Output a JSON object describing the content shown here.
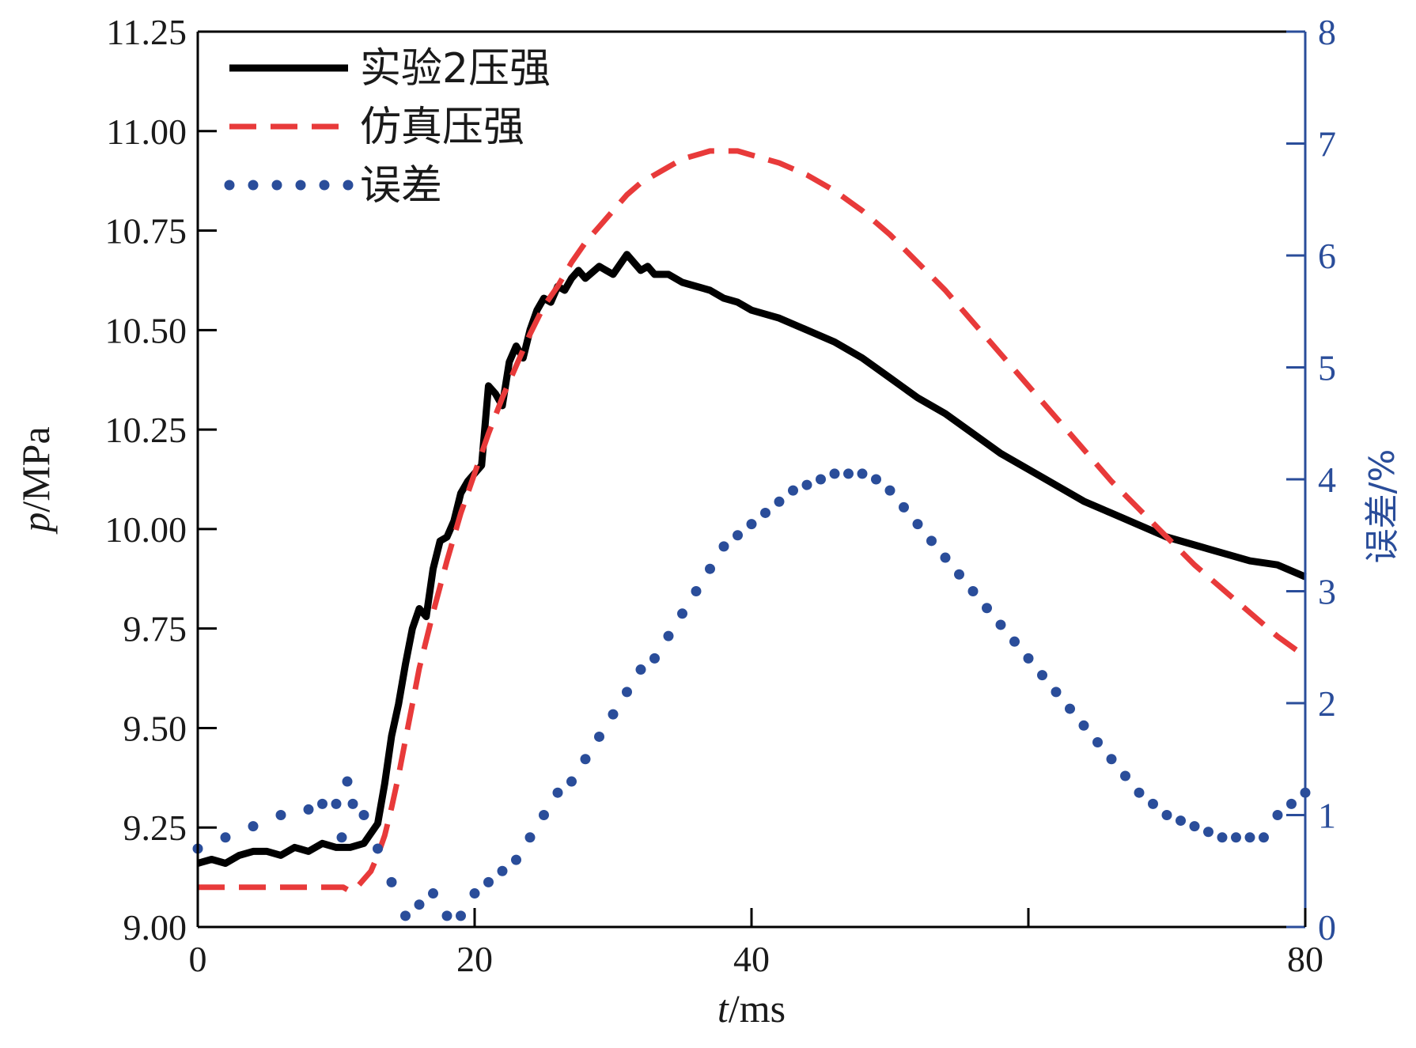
{
  "chart_data": {
    "type": "line",
    "x_axis": {
      "label_var": "t",
      "label_unit": "/ms",
      "range": [
        0,
        80
      ],
      "ticks": [
        0,
        20,
        40,
        60,
        80
      ],
      "tick_labels": [
        "0",
        "20",
        "40",
        "",
        "80"
      ]
    },
    "y_left": {
      "label_var": "p",
      "label_unit": "/MPa",
      "range": [
        9.0,
        11.25
      ],
      "ticks": [
        9.0,
        9.25,
        9.5,
        9.75,
        10.0,
        10.25,
        10.5,
        10.75,
        11.0,
        11.25
      ],
      "tick_labels": [
        "9.00",
        "9.25",
        "9.50",
        "9.75",
        "10.00",
        "10.25",
        "10.50",
        "10.75",
        "11.00",
        "11.25"
      ]
    },
    "y_right": {
      "label": "误差/%",
      "range": [
        0,
        8
      ],
      "ticks": [
        0,
        1,
        2,
        3,
        4,
        5,
        6,
        7,
        8
      ],
      "tick_labels": [
        "0",
        "1",
        "2",
        "3",
        "4",
        "5",
        "6",
        "7",
        "8"
      ]
    },
    "series": [
      {
        "name": "实验2压强",
        "axis": "left",
        "color": "#000000",
        "style": "solid",
        "x": [
          0,
          1,
          2,
          3,
          4,
          5,
          6,
          7,
          8,
          9,
          10,
          11,
          12,
          13,
          13.5,
          14,
          14.5,
          15,
          15.5,
          16,
          16.5,
          17,
          17.5,
          18,
          18.5,
          19,
          19.5,
          20,
          20.5,
          21,
          21.5,
          22,
          22.5,
          23,
          23.5,
          24,
          24.5,
          25,
          25.5,
          26,
          26.5,
          27,
          27.5,
          28,
          29,
          30,
          31,
          32,
          32.5,
          33,
          34,
          35,
          36,
          37,
          38,
          39,
          40,
          42,
          44,
          46,
          48,
          50,
          52,
          54,
          56,
          58,
          60,
          62,
          64,
          66,
          68,
          70,
          72,
          74,
          76,
          78,
          80
        ],
        "y": [
          9.16,
          9.17,
          9.16,
          9.18,
          9.19,
          9.19,
          9.18,
          9.2,
          9.19,
          9.21,
          9.2,
          9.2,
          9.21,
          9.26,
          9.36,
          9.48,
          9.56,
          9.66,
          9.75,
          9.8,
          9.78,
          9.9,
          9.97,
          9.98,
          10.02,
          10.09,
          10.12,
          10.14,
          10.16,
          10.36,
          10.34,
          10.31,
          10.42,
          10.46,
          10.43,
          10.5,
          10.55,
          10.58,
          10.57,
          10.61,
          10.6,
          10.63,
          10.65,
          10.63,
          10.66,
          10.64,
          10.69,
          10.65,
          10.66,
          10.64,
          10.64,
          10.62,
          10.61,
          10.6,
          10.58,
          10.57,
          10.55,
          10.53,
          10.5,
          10.47,
          10.43,
          10.38,
          10.33,
          10.29,
          10.24,
          10.19,
          10.15,
          10.11,
          10.07,
          10.04,
          10.01,
          9.98,
          9.96,
          9.94,
          9.92,
          9.91,
          9.88
        ]
      },
      {
        "name": "仿真压强",
        "axis": "left",
        "color": "#e83a3a",
        "style": "dashed",
        "x": [
          0,
          2,
          4,
          6,
          8,
          10,
          10.5,
          11,
          11.5,
          12,
          12.5,
          13,
          13.5,
          14,
          14.5,
          15,
          15.5,
          16,
          17,
          18,
          19,
          20,
          21,
          22,
          23,
          24,
          25,
          26,
          27,
          28,
          29,
          30,
          31,
          32,
          33,
          34,
          35,
          36,
          37,
          38,
          39,
          40,
          42,
          44,
          46,
          48,
          50,
          52,
          54,
          56,
          58,
          60,
          62,
          64,
          66,
          68,
          70,
          72,
          74,
          76,
          78,
          80
        ],
        "y": [
          9.1,
          9.1,
          9.1,
          9.1,
          9.1,
          9.1,
          9.1,
          9.09,
          9.1,
          9.12,
          9.14,
          9.18,
          9.23,
          9.3,
          9.38,
          9.47,
          9.56,
          9.65,
          9.79,
          9.92,
          10.04,
          10.14,
          10.24,
          10.33,
          10.41,
          10.49,
          10.56,
          10.61,
          10.67,
          10.72,
          10.76,
          10.8,
          10.84,
          10.87,
          10.89,
          10.91,
          10.93,
          10.94,
          10.95,
          10.95,
          10.95,
          10.94,
          10.92,
          10.89,
          10.85,
          10.8,
          10.74,
          10.67,
          10.6,
          10.52,
          10.44,
          10.36,
          10.28,
          10.2,
          10.12,
          10.05,
          9.98,
          9.91,
          9.85,
          9.79,
          9.73,
          9.68
        ]
      },
      {
        "name": "误差",
        "axis": "right",
        "color": "#2a4d9a",
        "style": "dotted",
        "x": [
          0,
          2,
          4,
          6,
          8,
          9,
          10,
          10.4,
          10.8,
          11.2,
          12,
          13,
          14,
          15,
          16,
          17,
          18,
          19,
          20,
          21,
          22,
          23,
          24,
          25,
          26,
          27,
          28,
          29,
          30,
          31,
          32,
          33,
          34,
          35,
          36,
          37,
          38,
          39,
          40,
          41,
          42,
          43,
          44,
          45,
          46,
          47,
          48,
          49,
          50,
          51,
          52,
          53,
          54,
          55,
          56,
          57,
          58,
          59,
          60,
          61,
          62,
          63,
          64,
          65,
          66,
          67,
          68,
          69,
          70,
          71,
          72,
          73,
          74,
          75,
          76,
          77,
          78,
          79,
          80
        ],
        "y": [
          0.7,
          0.8,
          0.9,
          1.0,
          1.05,
          1.1,
          1.1,
          0.8,
          1.3,
          1.1,
          1.0,
          0.7,
          0.4,
          0.1,
          0.2,
          0.3,
          0.1,
          0.1,
          0.3,
          0.4,
          0.5,
          0.6,
          0.8,
          1.0,
          1.2,
          1.3,
          1.5,
          1.7,
          1.9,
          2.1,
          2.3,
          2.4,
          2.6,
          2.8,
          3.0,
          3.2,
          3.4,
          3.5,
          3.6,
          3.7,
          3.8,
          3.9,
          3.95,
          4.0,
          4.05,
          4.05,
          4.05,
          4.0,
          3.9,
          3.75,
          3.6,
          3.45,
          3.3,
          3.15,
          3.0,
          2.85,
          2.7,
          2.55,
          2.4,
          2.25,
          2.1,
          1.95,
          1.8,
          1.65,
          1.5,
          1.35,
          1.2,
          1.1,
          1.0,
          0.95,
          0.9,
          0.85,
          0.8,
          0.8,
          0.8,
          0.8,
          1.0,
          1.1,
          1.2
        ]
      }
    ],
    "legend": {
      "position": "top-left",
      "entries": [
        "实验2压强",
        "仿真压强",
        "误差"
      ]
    }
  }
}
